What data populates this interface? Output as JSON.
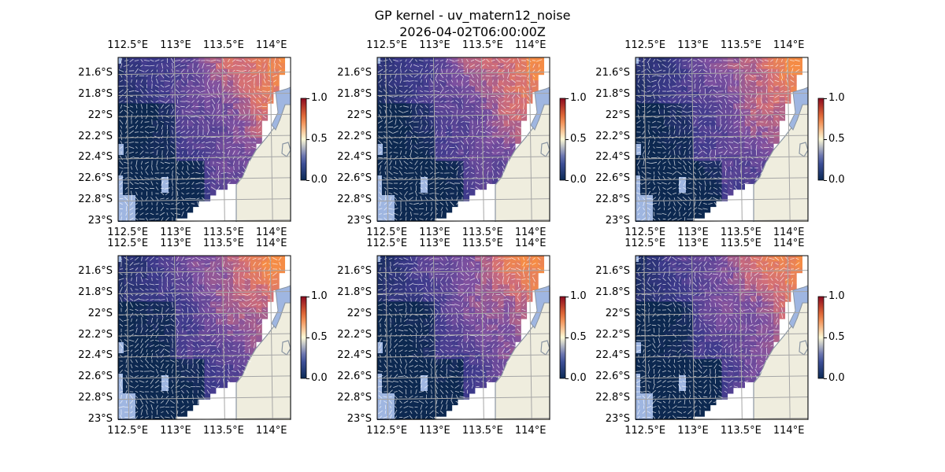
{
  "figure": {
    "title_line1": "GP kernel - uv_matern12_noise",
    "title_line2": "2026-04-02T06:00:00Z"
  },
  "colors": {
    "land": "#efedde",
    "land_outline": "#8b96a3",
    "missing": "#9fb6e1",
    "gridline": "#a6a6a6",
    "cmap_low": "#0b2a55",
    "cmap_mid": "#fdfad7",
    "cmap_high": "#8c0a1f"
  },
  "chart_data": [
    {
      "type": "heatmap",
      "panel": 1,
      "field": "gp_kernel_uv_matern12_noise",
      "overlay": "quiver",
      "colormap": "blue-white-red",
      "clim": [
        0,
        1
      ],
      "colorbar_ticks": [
        "0.0",
        "0.5",
        "1.0"
      ],
      "xlabel": "",
      "ylabel": "",
      "xlim": [
        112.4,
        114.2
      ],
      "ylim": [
        -23.0,
        -21.45
      ],
      "x_ticks": [
        "112.5°E",
        "113°E",
        "113.5°E",
        "114°E"
      ],
      "y_ticks": [
        "21.6°S",
        "21.8°S",
        "22°S",
        "22.2°S",
        "22.4°S",
        "22.6°S",
        "22.8°S",
        "23°S"
      ],
      "grid": true,
      "land_east_of_coast": true
    },
    {
      "type": "heatmap",
      "panel": 2,
      "field": "gp_kernel_uv_matern12_noise",
      "overlay": "quiver",
      "colormap": "blue-white-red",
      "clim": [
        0,
        1
      ],
      "colorbar_ticks": [
        "0.0",
        "0.5",
        "1.0"
      ],
      "xlabel": "",
      "ylabel": "",
      "xlim": [
        112.4,
        114.2
      ],
      "ylim": [
        -23.0,
        -21.45
      ],
      "x_ticks": [
        "112.5°E",
        "113°E",
        "113.5°E",
        "114°E"
      ],
      "y_ticks": [
        "21.6°S",
        "21.8°S",
        "22°S",
        "22.2°S",
        "22.4°S",
        "22.6°S",
        "22.8°S",
        "23°S"
      ],
      "grid": true,
      "land_east_of_coast": true
    },
    {
      "type": "heatmap",
      "panel": 3,
      "field": "gp_kernel_uv_matern12_noise",
      "overlay": "quiver",
      "colormap": "blue-white-red",
      "clim": [
        0,
        1
      ],
      "colorbar_ticks": [
        "0.0",
        "0.5",
        "1.0"
      ],
      "xlabel": "",
      "ylabel": "",
      "xlim": [
        112.4,
        114.2
      ],
      "ylim": [
        -23.0,
        -21.45
      ],
      "x_ticks": [
        "112.5°E",
        "113°E",
        "113.5°E",
        "114°E"
      ],
      "y_ticks": [
        "21.6°S",
        "21.8°S",
        "22°S",
        "22.2°S",
        "22.4°S",
        "22.6°S",
        "22.8°S",
        "23°S"
      ],
      "grid": true,
      "land_east_of_coast": true
    },
    {
      "type": "heatmap",
      "panel": 4,
      "field": "gp_kernel_uv_matern12_noise",
      "overlay": "quiver",
      "colormap": "blue-white-red",
      "clim": [
        0,
        1
      ],
      "colorbar_ticks": [
        "0.0",
        "0.5",
        "1.0"
      ],
      "xlabel": "",
      "ylabel": "",
      "xlim": [
        112.4,
        114.2
      ],
      "ylim": [
        -23.0,
        -21.45
      ],
      "x_ticks": [
        "112.5°E",
        "113°E",
        "113.5°E",
        "114°E"
      ],
      "y_ticks": [
        "21.6°S",
        "21.8°S",
        "22°S",
        "22.2°S",
        "22.4°S",
        "22.6°S",
        "22.8°S",
        "23°S"
      ],
      "grid": true,
      "land_east_of_coast": true
    },
    {
      "type": "heatmap",
      "panel": 5,
      "field": "gp_kernel_uv_matern12_noise",
      "overlay": "quiver",
      "colormap": "blue-white-red",
      "clim": [
        0,
        1
      ],
      "colorbar_ticks": [
        "0.0",
        "0.5",
        "1.0"
      ],
      "xlabel": "",
      "ylabel": "",
      "xlim": [
        112.4,
        114.2
      ],
      "ylim": [
        -23.0,
        -21.45
      ],
      "x_ticks": [
        "112.5°E",
        "113°E",
        "113.5°E",
        "114°E"
      ],
      "y_ticks": [
        "21.6°S",
        "21.8°S",
        "22°S",
        "22.2°S",
        "22.4°S",
        "22.6°S",
        "22.8°S",
        "23°S"
      ],
      "grid": true,
      "land_east_of_coast": true
    },
    {
      "type": "heatmap",
      "panel": 6,
      "field": "gp_kernel_uv_matern12_noise",
      "overlay": "quiver",
      "colormap": "blue-white-red",
      "clim": [
        0,
        1
      ],
      "colorbar_ticks": [
        "0.0",
        "0.5",
        "1.0"
      ],
      "xlabel": "",
      "ylabel": "",
      "xlim": [
        112.4,
        114.2
      ],
      "ylim": [
        -23.0,
        -21.45
      ],
      "x_ticks": [
        "112.5°E",
        "113°E",
        "113.5°E",
        "114°E"
      ],
      "y_ticks": [
        "21.6°S",
        "21.8°S",
        "22°S",
        "22.2°S",
        "22.4°S",
        "22.6°S",
        "22.8°S",
        "23°S"
      ],
      "grid": true,
      "land_east_of_coast": true
    }
  ]
}
